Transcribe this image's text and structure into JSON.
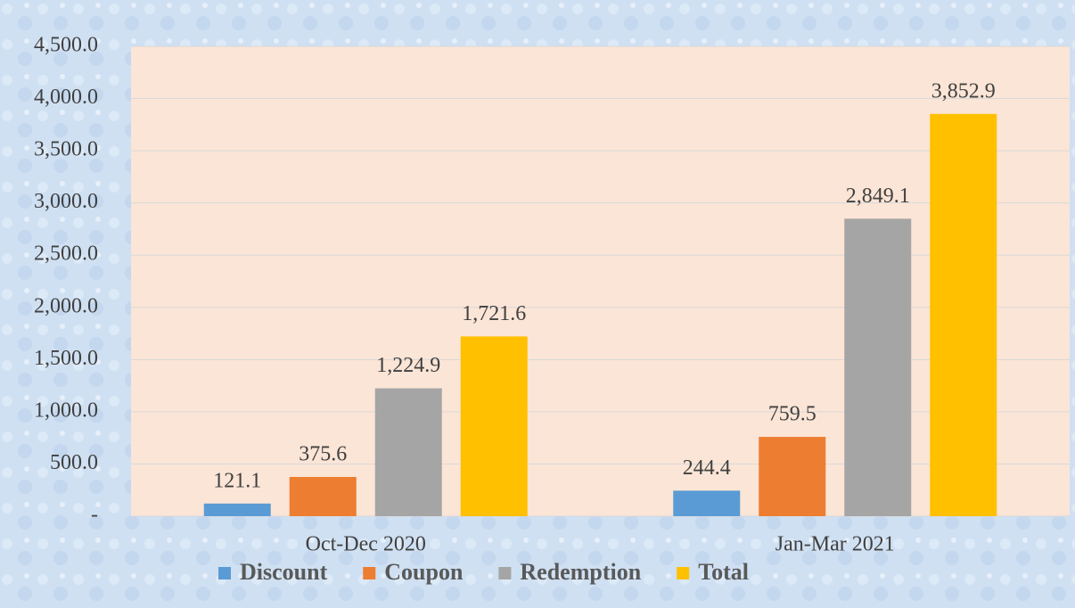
{
  "chart_data": {
    "type": "bar",
    "categories": [
      "Oct-Dec 2020",
      "Jan-Mar 2021"
    ],
    "series": [
      {
        "name": "Discount",
        "color": "#5b9bd5",
        "values": [
          121.1,
          244.4
        ],
        "value_labels": [
          "121.1",
          "244.4"
        ]
      },
      {
        "name": "Coupon",
        "color": "#ed7d31",
        "values": [
          375.6,
          759.5
        ],
        "value_labels": [
          "375.6",
          "759.5"
        ]
      },
      {
        "name": "Redemption",
        "color": "#a5a5a5",
        "values": [
          1224.9,
          2849.1
        ],
        "value_labels": [
          "1,224.9",
          "2,849.1"
        ]
      },
      {
        "name": "Total",
        "color": "#ffc000",
        "values": [
          1721.6,
          3852.9
        ],
        "value_labels": [
          "1,721.6",
          "3,852.9"
        ]
      }
    ],
    "ylim": [
      0,
      4500
    ],
    "yticks": [
      {
        "value": 0,
        "label": "-"
      },
      {
        "value": 500,
        "label": "500.0"
      },
      {
        "value": 1000,
        "label": "1,000.0"
      },
      {
        "value": 1500,
        "label": "1,500.0"
      },
      {
        "value": 2000,
        "label": "2,000.0"
      },
      {
        "value": 2500,
        "label": "2,500.0"
      },
      {
        "value": 3000,
        "label": "3,000.0"
      },
      {
        "value": 3500,
        "label": "3,500.0"
      },
      {
        "value": 4000,
        "label": "4,000.0"
      },
      {
        "value": 4500,
        "label": "4,500.0"
      }
    ],
    "grid": true,
    "legend": "bottom"
  }
}
